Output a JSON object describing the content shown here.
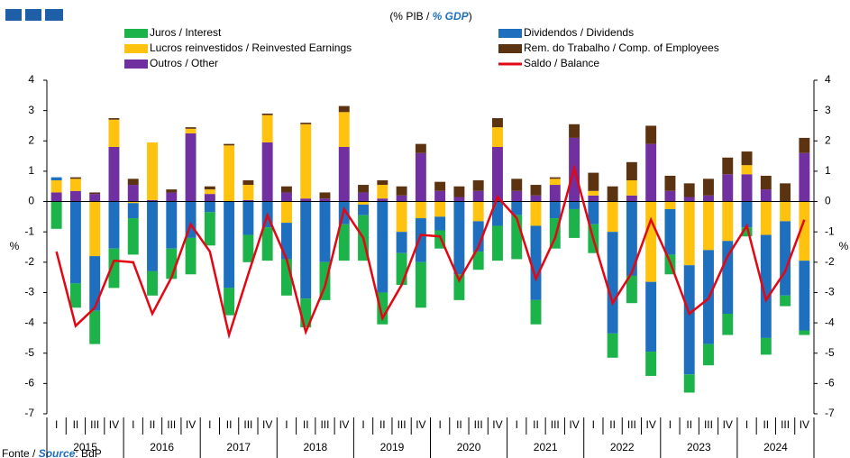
{
  "chart_data": {
    "type": "bar",
    "title": {
      "pt": "(% PIB /",
      "en": "% GDP",
      "close": ")"
    },
    "source": {
      "pt": "Fonte /",
      "en": "Source",
      "rest": ": BdP"
    },
    "y_label": "%",
    "categories": [
      "I",
      "II",
      "III",
      "IV",
      "I",
      "II",
      "III",
      "IV",
      "I",
      "II",
      "III",
      "IV",
      "I",
      "II",
      "III",
      "IV",
      "I",
      "II",
      "III",
      "IV",
      "I",
      "II",
      "III",
      "IV",
      "I",
      "II",
      "III",
      "IV",
      "I",
      "II",
      "III",
      "IV",
      "I",
      "II",
      "III",
      "IV",
      "I",
      "II",
      "III",
      "IV"
    ],
    "years": [
      "2015",
      "2016",
      "2017",
      "2018",
      "2019",
      "2020",
      "2021",
      "2022",
      "2023",
      "2024"
    ],
    "series": [
      {
        "name": "Juros / Interest",
        "color": "#1db34b",
        "values": [
          -0.9,
          -0.8,
          -1.1,
          -1.3,
          -1.2,
          -0.8,
          -1.0,
          -1.2,
          -1.1,
          -0.9,
          -0.9,
          -1.1,
          -1.2,
          -0.95,
          -1.25,
          -1.2,
          -1.5,
          -1.05,
          -1.05,
          -1.5,
          -0.6,
          -0.85,
          -0.6,
          -1.15,
          -1.45,
          -0.8,
          -1.0,
          -0.95,
          -0.95,
          -0.8,
          -0.9,
          -0.8,
          -0.65,
          -0.6,
          -0.7,
          -0.7,
          -0.3,
          -0.55,
          -0.35,
          -0.15
        ]
      },
      {
        "name": "Dividendos / Dividends",
        "color": "#1f6fbf",
        "values": [
          0.1,
          -2.7,
          -1.8,
          -1.55,
          -0.5,
          -2.3,
          -1.55,
          -1.2,
          -0.35,
          -2.85,
          -1.1,
          -0.85,
          -1.2,
          -3.2,
          -2.0,
          -0.75,
          -0.35,
          -3.0,
          -0.7,
          -1.45,
          -0.45,
          -2.4,
          -1.0,
          -0.8,
          -0.45,
          -2.45,
          -0.55,
          -0.25,
          -0.75,
          -3.35,
          -2.45,
          -2.3,
          -1.5,
          -3.6,
          -3.1,
          -2.4,
          -0.85,
          -3.4,
          -2.45,
          -2.3
        ]
      },
      {
        "name": "Lucros reinvestidos / Reinvested Earnings",
        "color": "#ffc20e",
        "values": [
          0.4,
          0.4,
          -1.8,
          0.9,
          -0.05,
          1.9,
          0,
          0.15,
          0.15,
          1.85,
          0.5,
          0.9,
          -0.7,
          2.45,
          0,
          1.15,
          -0.1,
          0.45,
          -1.0,
          -0.55,
          -0.5,
          0,
          -0.65,
          0.65,
          0,
          -0.8,
          0.2,
          0,
          0.15,
          -1.0,
          0.5,
          -2.65,
          -0.25,
          -2.1,
          -1.6,
          -1.3,
          0.3,
          -1.1,
          -0.65,
          -1.95
        ]
      },
      {
        "name": "Rem. do Trabalho / Comp. of Employees",
        "color": "#5c3311",
        "values": [
          0,
          0.05,
          0.05,
          0.05,
          0.2,
          0,
          0.1,
          0.05,
          0.1,
          0.05,
          0.15,
          0.05,
          0.2,
          0.05,
          0.2,
          0.2,
          0.25,
          0.15,
          0.3,
          0.3,
          0.3,
          0.35,
          0.35,
          0.3,
          0.4,
          0.35,
          0.05,
          0.45,
          0.6,
          0.5,
          0.6,
          0.6,
          0.5,
          0.45,
          0.55,
          0.55,
          0.45,
          0.45,
          0.6,
          0.5
        ]
      },
      {
        "name": "Outros / Other",
        "color": "#7030a0",
        "values": [
          0.3,
          0.35,
          0.25,
          1.8,
          0.55,
          0.05,
          0.3,
          2.25,
          0.25,
          0,
          0.05,
          1.95,
          0.3,
          0.1,
          0.1,
          1.8,
          0.3,
          0.1,
          0.2,
          1.6,
          0.35,
          0.15,
          0.35,
          1.8,
          0.35,
          0.2,
          0.55,
          2.1,
          0.2,
          0,
          0.2,
          1.9,
          0.35,
          0.15,
          0.2,
          0.9,
          0.9,
          0.4,
          0,
          1.6
        ]
      }
    ],
    "line": {
      "name": "Saldo / Balance",
      "color": "#e30613",
      "values": [
        -1.65,
        -4.1,
        -3.5,
        -1.95,
        -2.0,
        -3.7,
        -2.5,
        -0.75,
        -1.65,
        -4.4,
        -2.4,
        -0.45,
        -1.9,
        -4.3,
        -2.8,
        -0.25,
        -1.2,
        -3.85,
        -2.75,
        -1.1,
        -1.15,
        -2.6,
        -1.5,
        0.15,
        -0.55,
        -2.55,
        -1.2,
        1.1,
        -1.25,
        -3.35,
        -2.35,
        -0.6,
        -2.0,
        -3.7,
        -3.2,
        -1.8,
        -0.8,
        -3.25,
        -2.3,
        -0.6
      ]
    },
    "ylim": [
      -7,
      4
    ],
    "yticks": [
      -7,
      -6,
      -5,
      -4,
      -3,
      -2,
      -1,
      0,
      1,
      2,
      3,
      4
    ]
  }
}
